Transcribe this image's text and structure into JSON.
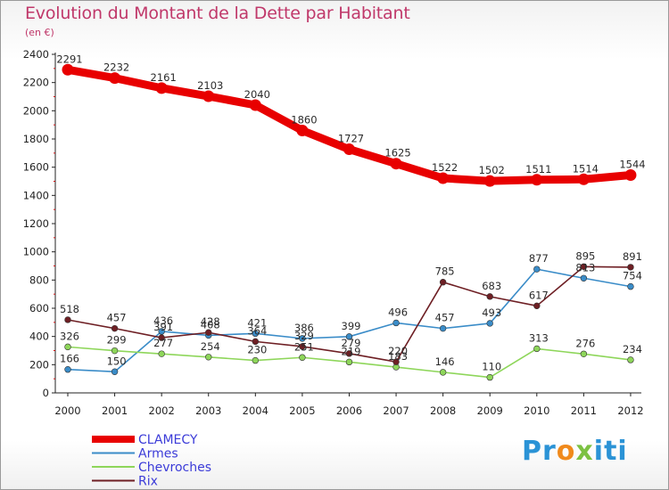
{
  "chart_data": {
    "type": "line",
    "title": "Evolution du Montant de la Dette par Habitant",
    "subtitle": "(en €)",
    "x": [
      "2000",
      "2001",
      "2002",
      "2003",
      "2004",
      "2005",
      "2006",
      "2007",
      "2008",
      "2009",
      "2010",
      "2011",
      "2012"
    ],
    "y_ticks": [
      "0",
      "200",
      "400",
      "600",
      "800",
      "1000",
      "1200",
      "1400",
      "1600",
      "1800",
      "2000",
      "2200",
      "2400"
    ],
    "ylim": [
      0,
      2400
    ],
    "grid": false,
    "legend_position": "bottom-left",
    "series": [
      {
        "name": "CLAMECY",
        "color": "#e80000",
        "values": [
          2291,
          2232,
          2161,
          2103,
          2040,
          1860,
          1727,
          1625,
          1522,
          1502,
          1511,
          1514,
          1544
        ]
      },
      {
        "name": "Armes",
        "color": "#3a8cc8",
        "values": [
          166,
          150,
          436,
          408,
          421,
          386,
          399,
          496,
          457,
          493,
          877,
          813,
          754
        ]
      },
      {
        "name": "Chevroches",
        "color": "#8ed65a",
        "values": [
          326,
          299,
          277,
          254,
          230,
          251,
          219,
          183,
          146,
          110,
          313,
          276,
          234
        ]
      },
      {
        "name": "Rix",
        "color": "#6e1f24",
        "values": [
          518,
          457,
          391,
          428,
          364,
          329,
          279,
          220,
          785,
          683,
          617,
          895,
          891
        ]
      }
    ]
  },
  "logo": {
    "p1": "Pr",
    "p2": "o",
    "p3": "x",
    "p4": "iti"
  }
}
